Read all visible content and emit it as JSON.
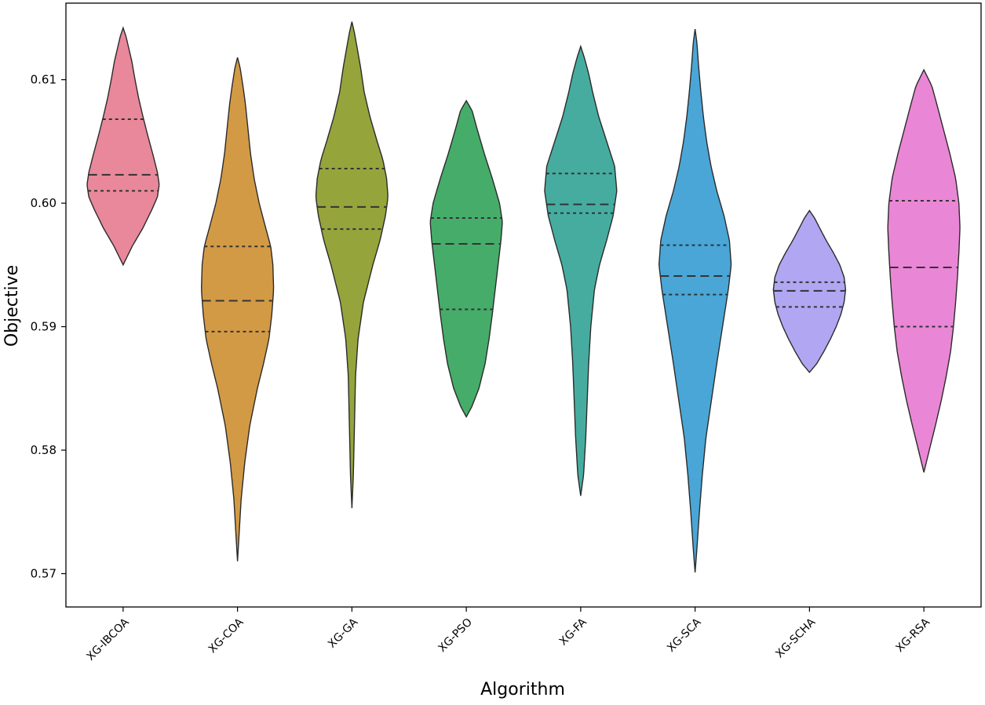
{
  "chart_data": {
    "type": "violin",
    "title": "",
    "xlabel": "Algorithm",
    "ylabel": "Objective",
    "ylim": [
      0.5673,
      0.6162
    ],
    "yticks": [
      "0.57",
      "0.58",
      "0.59",
      "0.60",
      "0.61"
    ],
    "yticks_values": [
      0.57,
      0.58,
      0.59,
      0.6,
      0.61
    ],
    "inner": "quartile",
    "grid": false,
    "categories": [
      "XG-IBCOA",
      "XG-COA",
      "XG-GA",
      "XG-PSO",
      "XG-FA",
      "XG-SCA",
      "XG-SCHA",
      "XG-RSA"
    ],
    "series": [
      {
        "name": "XG-IBCOA",
        "color": "#e8889a",
        "quartiles": [
          0.601,
          0.6023,
          0.6068
        ],
        "profile": [
          [
            0.595,
            0.0
          ],
          [
            0.5965,
            0.25
          ],
          [
            0.598,
            0.55
          ],
          [
            0.5995,
            0.8
          ],
          [
            0.6005,
            0.95
          ],
          [
            0.6015,
            1.0
          ],
          [
            0.6025,
            0.95
          ],
          [
            0.604,
            0.82
          ],
          [
            0.6055,
            0.68
          ],
          [
            0.607,
            0.55
          ],
          [
            0.6085,
            0.43
          ],
          [
            0.61,
            0.33
          ],
          [
            0.6115,
            0.24
          ],
          [
            0.6125,
            0.16
          ],
          [
            0.6135,
            0.08
          ],
          [
            0.6142,
            0.0
          ]
        ]
      },
      {
        "name": "XG-COA",
        "color": "#d39a45",
        "quartiles": [
          0.5896,
          0.5921,
          0.5965
        ],
        "profile": [
          [
            0.571,
            0.0
          ],
          [
            0.573,
            0.04
          ],
          [
            0.576,
            0.1
          ],
          [
            0.579,
            0.2
          ],
          [
            0.582,
            0.34
          ],
          [
            0.585,
            0.55
          ],
          [
            0.587,
            0.72
          ],
          [
            0.589,
            0.87
          ],
          [
            0.591,
            0.95
          ],
          [
            0.593,
            1.0
          ],
          [
            0.595,
            0.98
          ],
          [
            0.5965,
            0.92
          ],
          [
            0.598,
            0.78
          ],
          [
            0.6,
            0.6
          ],
          [
            0.602,
            0.46
          ],
          [
            0.604,
            0.36
          ],
          [
            0.606,
            0.29
          ],
          [
            0.608,
            0.22
          ],
          [
            0.6095,
            0.15
          ],
          [
            0.611,
            0.07
          ],
          [
            0.6118,
            0.0
          ]
        ]
      },
      {
        "name": "XG-GA",
        "color": "#96a43c",
        "quartiles": [
          0.5979,
          0.5997,
          0.6028
        ],
        "profile": [
          [
            0.5753,
            0.0
          ],
          [
            0.578,
            0.04
          ],
          [
            0.582,
            0.07
          ],
          [
            0.586,
            0.1
          ],
          [
            0.589,
            0.17
          ],
          [
            0.592,
            0.32
          ],
          [
            0.595,
            0.58
          ],
          [
            0.597,
            0.78
          ],
          [
            0.599,
            0.93
          ],
          [
            0.6005,
            1.0
          ],
          [
            0.602,
            0.96
          ],
          [
            0.6035,
            0.86
          ],
          [
            0.605,
            0.7
          ],
          [
            0.607,
            0.5
          ],
          [
            0.609,
            0.34
          ],
          [
            0.611,
            0.24
          ],
          [
            0.6125,
            0.15
          ],
          [
            0.6138,
            0.07
          ],
          [
            0.6147,
            0.0
          ]
        ]
      },
      {
        "name": "XG-PSO",
        "color": "#46ac6a",
        "quartiles": [
          0.5914,
          0.5967,
          0.5988
        ],
        "profile": [
          [
            0.5827,
            0.0
          ],
          [
            0.5835,
            0.15
          ],
          [
            0.585,
            0.35
          ],
          [
            0.587,
            0.52
          ],
          [
            0.589,
            0.63
          ],
          [
            0.591,
            0.72
          ],
          [
            0.593,
            0.8
          ],
          [
            0.595,
            0.88
          ],
          [
            0.597,
            0.96
          ],
          [
            0.5985,
            1.0
          ],
          [
            0.6,
            0.92
          ],
          [
            0.602,
            0.72
          ],
          [
            0.604,
            0.5
          ],
          [
            0.606,
            0.3
          ],
          [
            0.6075,
            0.16
          ],
          [
            0.6083,
            0.0
          ]
        ]
      },
      {
        "name": "XG-FA",
        "color": "#46aca0",
        "quartiles": [
          0.5992,
          0.5999,
          0.6024
        ],
        "profile": [
          [
            0.5763,
            0.0
          ],
          [
            0.578,
            0.08
          ],
          [
            0.581,
            0.14
          ],
          [
            0.584,
            0.18
          ],
          [
            0.587,
            0.22
          ],
          [
            0.59,
            0.28
          ],
          [
            0.593,
            0.38
          ],
          [
            0.595,
            0.52
          ],
          [
            0.597,
            0.72
          ],
          [
            0.599,
            0.9
          ],
          [
            0.601,
            1.0
          ],
          [
            0.603,
            0.94
          ],
          [
            0.605,
            0.72
          ],
          [
            0.607,
            0.5
          ],
          [
            0.609,
            0.33
          ],
          [
            0.6105,
            0.22
          ],
          [
            0.6118,
            0.1
          ],
          [
            0.6127,
            0.0
          ]
        ]
      },
      {
        "name": "XG-SCA",
        "color": "#4aa6d6",
        "quartiles": [
          0.5926,
          0.5941,
          0.5966
        ],
        "profile": [
          [
            0.5701,
            0.0
          ],
          [
            0.572,
            0.05
          ],
          [
            0.575,
            0.12
          ],
          [
            0.578,
            0.2
          ],
          [
            0.581,
            0.3
          ],
          [
            0.584,
            0.45
          ],
          [
            0.587,
            0.6
          ],
          [
            0.59,
            0.76
          ],
          [
            0.593,
            0.92
          ],
          [
            0.595,
            1.0
          ],
          [
            0.597,
            0.95
          ],
          [
            0.599,
            0.8
          ],
          [
            0.601,
            0.6
          ],
          [
            0.603,
            0.44
          ],
          [
            0.605,
            0.32
          ],
          [
            0.607,
            0.23
          ],
          [
            0.609,
            0.16
          ],
          [
            0.611,
            0.1
          ],
          [
            0.613,
            0.05
          ],
          [
            0.6141,
            0.0
          ]
        ]
      },
      {
        "name": "XG-SCHA",
        "color": "#b1a6f2",
        "quartiles": [
          0.5916,
          0.5929,
          0.5936
        ],
        "profile": [
          [
            0.5863,
            0.0
          ],
          [
            0.587,
            0.2
          ],
          [
            0.588,
            0.4
          ],
          [
            0.589,
            0.58
          ],
          [
            0.59,
            0.74
          ],
          [
            0.591,
            0.87
          ],
          [
            0.592,
            0.96
          ],
          [
            0.593,
            1.0
          ],
          [
            0.594,
            0.96
          ],
          [
            0.595,
            0.84
          ],
          [
            0.596,
            0.66
          ],
          [
            0.597,
            0.46
          ],
          [
            0.598,
            0.28
          ],
          [
            0.5988,
            0.14
          ],
          [
            0.5994,
            0.0
          ]
        ]
      },
      {
        "name": "XG-RSA",
        "color": "#ea86d6",
        "quartiles": [
          0.59,
          0.5948,
          0.6002
        ],
        "profile": [
          [
            0.5782,
            0.0
          ],
          [
            0.58,
            0.15
          ],
          [
            0.582,
            0.32
          ],
          [
            0.584,
            0.48
          ],
          [
            0.586,
            0.62
          ],
          [
            0.588,
            0.74
          ],
          [
            0.59,
            0.82
          ],
          [
            0.592,
            0.88
          ],
          [
            0.594,
            0.93
          ],
          [
            0.596,
            0.97
          ],
          [
            0.598,
            1.0
          ],
          [
            0.6,
            0.97
          ],
          [
            0.602,
            0.88
          ],
          [
            0.604,
            0.72
          ],
          [
            0.606,
            0.54
          ],
          [
            0.608,
            0.36
          ],
          [
            0.6095,
            0.22
          ],
          [
            0.6108,
            0.0
          ]
        ]
      }
    ]
  }
}
